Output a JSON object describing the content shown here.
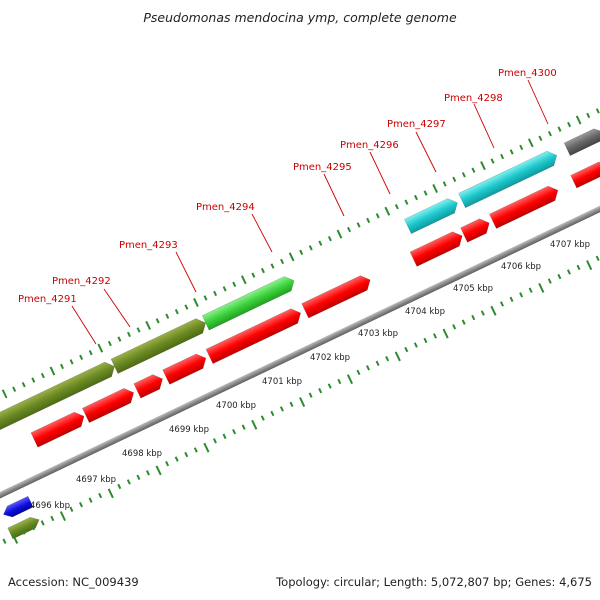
{
  "title": "Pseudomonas mendocina ymp, complete genome",
  "footer": {
    "accession": "Accession: NC_009439",
    "summary": "Topology: circular; Length: 5,072,807 bp; Genes: 4,675"
  },
  "colors": {
    "backbone": "#8a8a8a",
    "tick": "#2e8b2e",
    "label": "#cc0000"
  },
  "gene_labels": [
    {
      "text": "Pmen_4291"
    },
    {
      "text": "Pmen_4292"
    },
    {
      "text": "Pmen_4293"
    },
    {
      "text": "Pmen_4294"
    },
    {
      "text": "Pmen_4295"
    },
    {
      "text": "Pmen_4296"
    },
    {
      "text": "Pmen_4297"
    },
    {
      "text": "Pmen_4298"
    },
    {
      "text": "Pmen_4300"
    }
  ],
  "kbp_labels": [
    "4696 kbp",
    "4697 kbp",
    "4698 kbp",
    "4699 kbp",
    "4700 kbp",
    "4701 kbp",
    "4702 kbp",
    "4703 kbp",
    "4704 kbp",
    "4705 kbp",
    "4706 kbp",
    "4707 kbp"
  ]
}
